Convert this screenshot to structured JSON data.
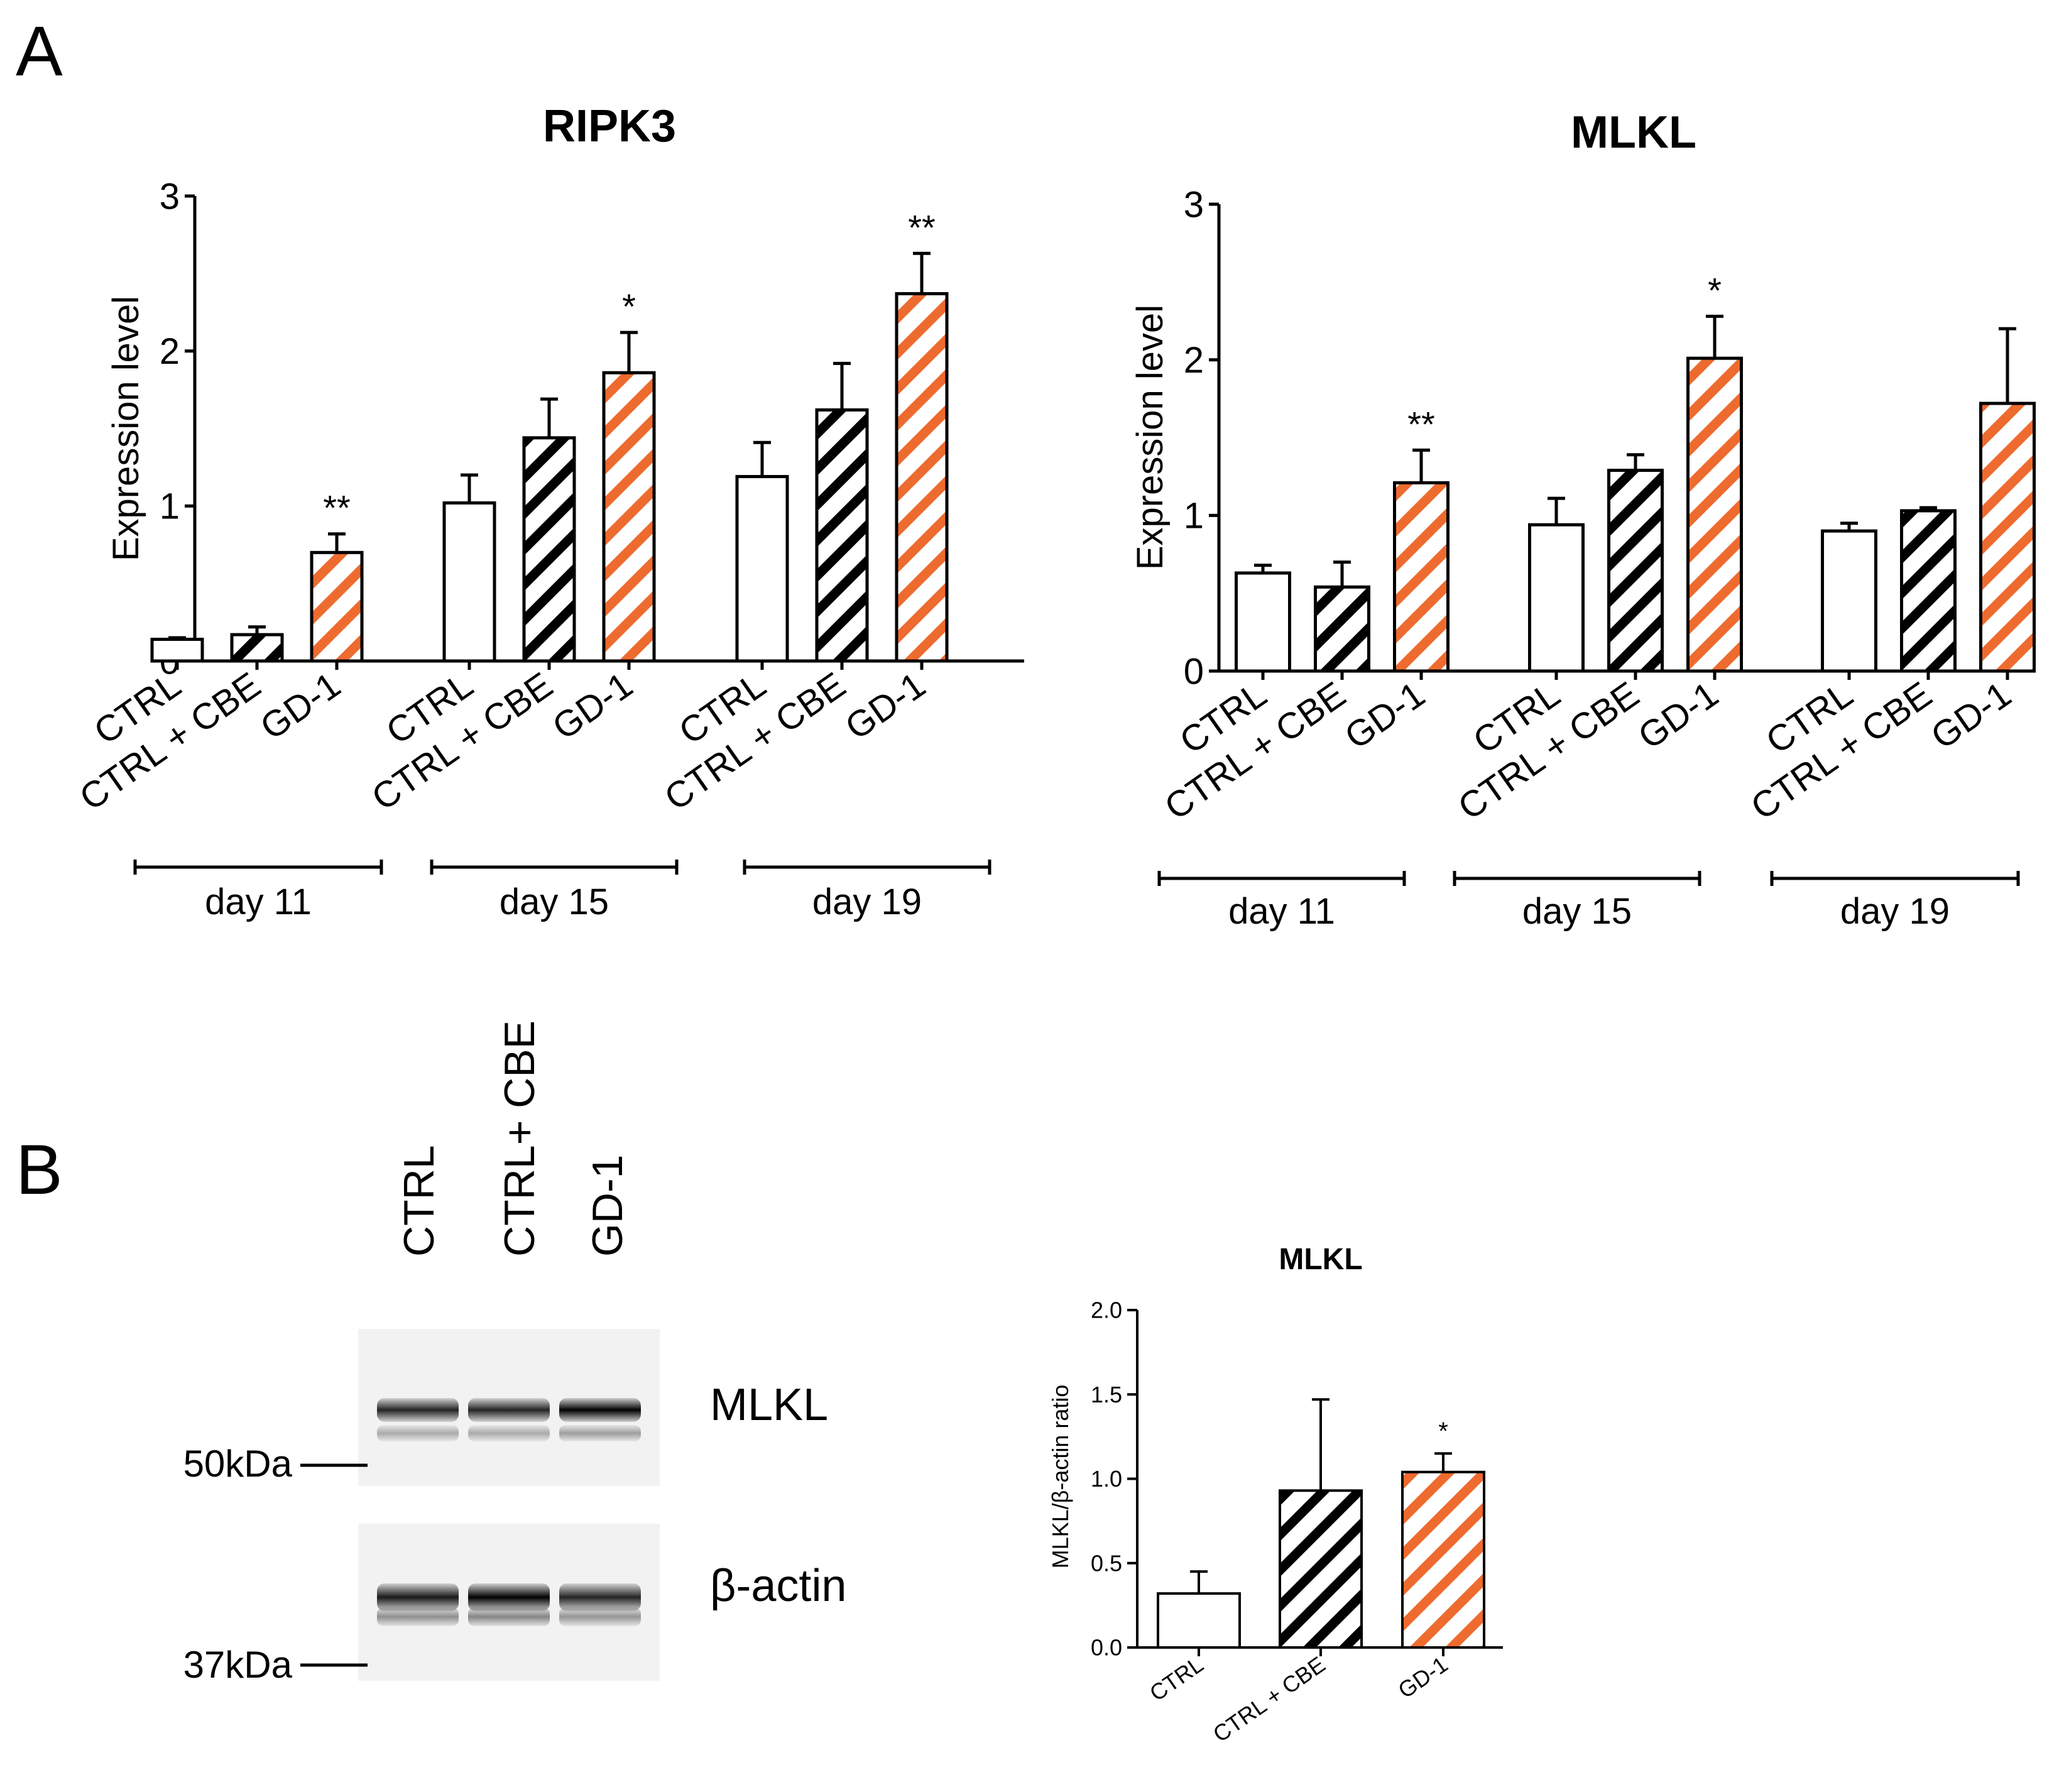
{
  "panel_labels": {
    "a": "A",
    "b": "B"
  },
  "colors": {
    "orange": "#ee6b2f",
    "black": "#000000",
    "white": "#ffffff"
  },
  "chart_data": [
    {
      "type": "bar",
      "title": "RIPK3",
      "ylabel": "Expression level",
      "ylim": [
        0,
        3
      ],
      "yticks": [
        "0",
        "1",
        "2",
        "3"
      ],
      "groups": [
        "day 11",
        "day 15",
        "day 19"
      ],
      "categories": [
        "CTRL",
        "CTRL + CBE",
        "GD-1"
      ],
      "bar_fill": [
        "plain",
        "hatch-black",
        "hatch-orange"
      ],
      "values": [
        [
          0.14,
          0.17,
          0.7
        ],
        [
          1.02,
          1.44,
          1.86
        ],
        [
          1.19,
          1.62,
          2.37
        ]
      ],
      "errors": [
        [
          0.01,
          0.05,
          0.12
        ],
        [
          0.18,
          0.25,
          0.26
        ],
        [
          0.22,
          0.3,
          0.26
        ]
      ],
      "annotations": [
        [
          "",
          "",
          "**"
        ],
        [
          "",
          "",
          "*"
        ],
        [
          "",
          "",
          "**"
        ]
      ]
    },
    {
      "type": "bar",
      "title": "MLKL",
      "ylabel": "Expression level",
      "ylim": [
        0,
        3
      ],
      "yticks": [
        "0",
        "1",
        "2",
        "3"
      ],
      "groups": [
        "day 11",
        "day 15",
        "day 19"
      ],
      "categories": [
        "CTRL",
        "CTRL + CBE",
        "GD-1"
      ],
      "bar_fill": [
        "plain",
        "hatch-black",
        "hatch-orange"
      ],
      "values": [
        [
          0.63,
          0.54,
          1.21
        ],
        [
          0.94,
          1.29,
          2.01
        ],
        [
          0.9,
          1.03,
          1.72
        ]
      ],
      "errors": [
        [
          0.05,
          0.16,
          0.21
        ],
        [
          0.17,
          0.1,
          0.27
        ],
        [
          0.05,
          0.02,
          0.48
        ]
      ],
      "annotations": [
        [
          "",
          "",
          "**"
        ],
        [
          "",
          "",
          "*"
        ],
        [
          "",
          "",
          ""
        ]
      ]
    },
    {
      "type": "bar",
      "title": "MLKL",
      "ylabel": "MLKL/β-actin ratio",
      "ylim": [
        0,
        2
      ],
      "yticks": [
        "0.0",
        "0.5",
        "1.0",
        "1.5",
        "2.0"
      ],
      "categories": [
        "CTRL",
        "CTRL + CBE",
        "GD-1"
      ],
      "bar_fill": [
        "plain",
        "hatch-black",
        "hatch-orange"
      ],
      "values": [
        0.32,
        0.93,
        1.04
      ],
      "errors": [
        0.13,
        0.54,
        0.11
      ],
      "annotations": [
        "",
        "",
        "*"
      ]
    }
  ],
  "blot": {
    "lanes": [
      "CTRL",
      "CTRL+ CBE",
      "GD-1"
    ],
    "bands": [
      {
        "label": "MLKL",
        "marker": "50kDa",
        "intensity": [
          0.85,
          0.85,
          1.0
        ]
      },
      {
        "label": "β-actin",
        "marker": "37kDa",
        "intensity": [
          0.9,
          1.0,
          0.85
        ]
      }
    ]
  }
}
